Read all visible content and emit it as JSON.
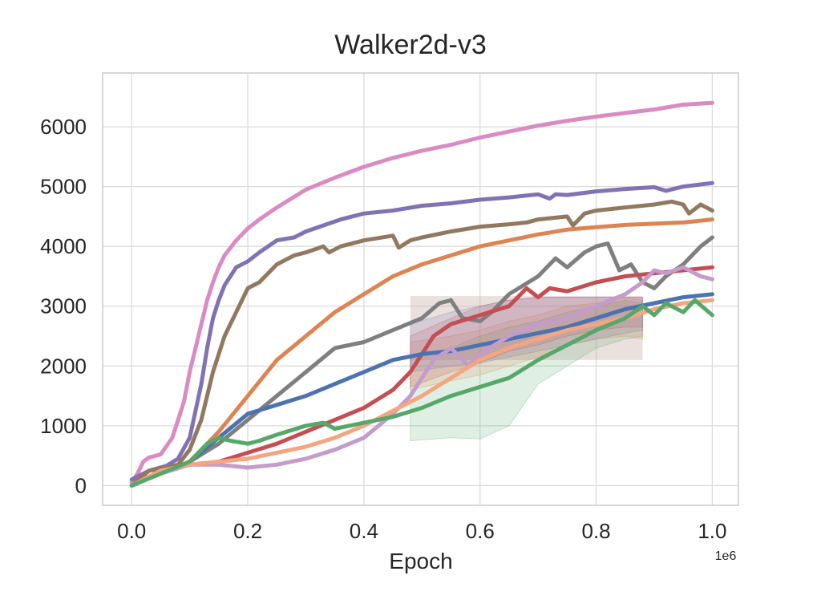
{
  "chart_data": {
    "type": "line",
    "title": "Walker2d-v3",
    "xlabel": "Epoch",
    "ylabel": "",
    "x_offset_label": "1e6",
    "xlim": [
      -0.05,
      1.045
    ],
    "ylim": [
      -330,
      6900
    ],
    "x_ticks": [
      0.0,
      0.2,
      0.4,
      0.6,
      0.8,
      1.0
    ],
    "x_tick_labels": [
      "0.0",
      "0.2",
      "0.4",
      "0.6",
      "0.8",
      "1.0"
    ],
    "y_ticks": [
      0,
      1000,
      2000,
      3000,
      4000,
      5000,
      6000
    ],
    "y_tick_labels": [
      "0",
      "1000",
      "2000",
      "3000",
      "4000",
      "5000",
      "6000"
    ],
    "grid": true,
    "style": {
      "background": "#ffffff",
      "grid_color": "#dcdcdc",
      "spine_color": "#cccccc",
      "text_color": "#262626"
    },
    "inset_box": {
      "x": [
        0.48,
        0.88
      ],
      "y": [
        2100,
        3170
      ],
      "color": "#c4a5a0"
    },
    "bands": [
      {
        "color": "#55a868",
        "x": [
          0.48,
          0.55,
          0.6,
          0.65,
          0.7,
          0.75,
          0.8,
          0.85,
          0.88
        ],
        "lower": [
          750,
          800,
          780,
          1000,
          1700,
          2000,
          2300,
          2450,
          2500
        ],
        "upper": [
          2150,
          2300,
          2500,
          2650,
          2750,
          2900,
          3000,
          3100,
          3050
        ]
      },
      {
        "color": "#dd8452",
        "x": [
          0.48,
          0.55,
          0.6,
          0.65,
          0.7,
          0.75,
          0.8,
          0.85,
          0.88
        ],
        "lower": [
          1600,
          1750,
          1850,
          2000,
          2150,
          2350,
          2450,
          2500,
          2450
        ],
        "upper": [
          2400,
          2500,
          2600,
          2750,
          2850,
          3000,
          3050,
          3150,
          3100
        ]
      },
      {
        "color": "#c44e52",
        "x": [
          0.48,
          0.55,
          0.6,
          0.65,
          0.7,
          0.75,
          0.8,
          0.85,
          0.88
        ],
        "lower": [
          1650,
          1900,
          2050,
          2250,
          2350,
          2500,
          2600,
          2650,
          2650
        ],
        "upper": [
          2500,
          2800,
          3000,
          3100,
          3150,
          3150,
          3150,
          3150,
          3150
        ]
      },
      {
        "color": "#8172b3",
        "x": [
          0.48,
          0.55,
          0.6,
          0.65,
          0.7,
          0.75,
          0.8,
          0.85,
          0.88
        ],
        "lower": [
          1900,
          2000,
          2050,
          2150,
          2250,
          2350,
          2450,
          2550,
          2600
        ],
        "upper": [
          2700,
          2900,
          3000,
          3100,
          3150,
          3150,
          3150,
          3150,
          3150
        ]
      }
    ],
    "series": [
      {
        "color": "#da8bc3",
        "x": [
          0.0,
          0.01,
          0.02,
          0.03,
          0.05,
          0.07,
          0.09,
          0.1,
          0.11,
          0.12,
          0.13,
          0.14,
          0.15,
          0.16,
          0.18,
          0.2,
          0.22,
          0.25,
          0.3,
          0.35,
          0.4,
          0.45,
          0.5,
          0.55,
          0.6,
          0.65,
          0.7,
          0.75,
          0.8,
          0.85,
          0.9,
          0.95,
          1.0
        ],
        "y": [
          50,
          200,
          400,
          470,
          520,
          800,
          1400,
          1900,
          2300,
          2700,
          3100,
          3400,
          3650,
          3850,
          4100,
          4300,
          4450,
          4650,
          4950,
          5150,
          5330,
          5480,
          5600,
          5700,
          5820,
          5920,
          6020,
          6100,
          6170,
          6230,
          6290,
          6370,
          6400
        ]
      },
      {
        "color": "#8172b3",
        "x": [
          0.0,
          0.03,
          0.06,
          0.08,
          0.1,
          0.12,
          0.13,
          0.14,
          0.15,
          0.16,
          0.18,
          0.2,
          0.22,
          0.25,
          0.28,
          0.3,
          0.33,
          0.36,
          0.4,
          0.45,
          0.5,
          0.55,
          0.6,
          0.65,
          0.68,
          0.7,
          0.72,
          0.73,
          0.75,
          0.8,
          0.85,
          0.9,
          0.92,
          0.95,
          1.0
        ],
        "y": [
          100,
          250,
          330,
          450,
          800,
          1700,
          2300,
          2800,
          3100,
          3350,
          3650,
          3750,
          3900,
          4100,
          4150,
          4250,
          4350,
          4450,
          4550,
          4600,
          4680,
          4720,
          4780,
          4820,
          4850,
          4870,
          4800,
          4870,
          4860,
          4920,
          4960,
          4990,
          4930,
          5000,
          5060
        ]
      },
      {
        "color": "#937860",
        "x": [
          0.0,
          0.03,
          0.06,
          0.08,
          0.1,
          0.12,
          0.14,
          0.16,
          0.18,
          0.2,
          0.22,
          0.25,
          0.28,
          0.3,
          0.33,
          0.34,
          0.36,
          0.4,
          0.45,
          0.46,
          0.48,
          0.5,
          0.55,
          0.6,
          0.65,
          0.68,
          0.7,
          0.75,
          0.76,
          0.78,
          0.8,
          0.85,
          0.9,
          0.93,
          0.95,
          0.96,
          0.98,
          1.0
        ],
        "y": [
          0,
          250,
          300,
          350,
          600,
          1100,
          1900,
          2500,
          2900,
          3300,
          3400,
          3700,
          3850,
          3900,
          4000,
          3900,
          4000,
          4100,
          4180,
          3980,
          4100,
          4150,
          4250,
          4330,
          4370,
          4400,
          4450,
          4500,
          4350,
          4550,
          4600,
          4650,
          4700,
          4750,
          4700,
          4550,
          4700,
          4600
        ]
      },
      {
        "color": "#dd8452",
        "x": [
          0.0,
          0.05,
          0.1,
          0.15,
          0.2,
          0.25,
          0.3,
          0.35,
          0.4,
          0.45,
          0.5,
          0.55,
          0.6,
          0.65,
          0.7,
          0.75,
          0.8,
          0.85,
          0.9,
          0.95,
          1.0
        ],
        "y": [
          0,
          200,
          400,
          900,
          1500,
          2100,
          2500,
          2900,
          3200,
          3500,
          3700,
          3850,
          4000,
          4100,
          4200,
          4280,
          4320,
          4360,
          4380,
          4400,
          4450
        ]
      },
      {
        "color": "#7f7f7f",
        "x": [
          0.0,
          0.05,
          0.1,
          0.15,
          0.2,
          0.25,
          0.3,
          0.35,
          0.4,
          0.45,
          0.5,
          0.53,
          0.55,
          0.57,
          0.6,
          0.62,
          0.65,
          0.7,
          0.73,
          0.75,
          0.78,
          0.8,
          0.82,
          0.84,
          0.86,
          0.88,
          0.9,
          0.92,
          0.95,
          0.98,
          1.0
        ],
        "y": [
          0,
          200,
          400,
          700,
          1100,
          1500,
          1900,
          2300,
          2400,
          2600,
          2800,
          3050,
          3100,
          2800,
          2750,
          2900,
          3200,
          3500,
          3800,
          3650,
          3900,
          4000,
          4050,
          3600,
          3700,
          3400,
          3300,
          3500,
          3700,
          4000,
          4150
        ]
      },
      {
        "color": "#c44e52",
        "x": [
          0.0,
          0.05,
          0.1,
          0.15,
          0.2,
          0.25,
          0.3,
          0.35,
          0.4,
          0.45,
          0.48,
          0.5,
          0.52,
          0.55,
          0.6,
          0.65,
          0.68,
          0.7,
          0.72,
          0.75,
          0.8,
          0.85,
          0.9,
          0.95,
          1.0
        ],
        "y": [
          0,
          250,
          350,
          400,
          550,
          700,
          900,
          1100,
          1300,
          1600,
          1900,
          2200,
          2500,
          2700,
          2850,
          3000,
          3300,
          3150,
          3300,
          3250,
          3400,
          3500,
          3550,
          3600,
          3650
        ]
      },
      {
        "color": "#4c72b0",
        "x": [
          0.0,
          0.05,
          0.1,
          0.15,
          0.2,
          0.25,
          0.3,
          0.35,
          0.4,
          0.45,
          0.5,
          0.55,
          0.6,
          0.65,
          0.7,
          0.75,
          0.8,
          0.85,
          0.9,
          0.95,
          1.0
        ],
        "y": [
          0,
          200,
          400,
          800,
          1200,
          1350,
          1500,
          1700,
          1900,
          2100,
          2200,
          2250,
          2350,
          2450,
          2550,
          2650,
          2800,
          2950,
          3050,
          3150,
          3200
        ]
      },
      {
        "color": "#c49bcc",
        "x": [
          0.0,
          0.05,
          0.1,
          0.15,
          0.2,
          0.25,
          0.3,
          0.35,
          0.4,
          0.45,
          0.48,
          0.5,
          0.52,
          0.55,
          0.58,
          0.6,
          0.65,
          0.7,
          0.75,
          0.8,
          0.85,
          0.88,
          0.9,
          0.92,
          0.95,
          0.98,
          1.0
        ],
        "y": [
          0,
          200,
          350,
          350,
          300,
          350,
          450,
          600,
          800,
          1200,
          1500,
          1800,
          2100,
          2300,
          2000,
          2200,
          2500,
          2700,
          2800,
          3000,
          3200,
          3400,
          3600,
          3550,
          3650,
          3500,
          3450
        ]
      },
      {
        "color": "#f4a582",
        "x": [
          0.0,
          0.05,
          0.1,
          0.15,
          0.2,
          0.25,
          0.3,
          0.35,
          0.4,
          0.45,
          0.5,
          0.55,
          0.6,
          0.65,
          0.7,
          0.75,
          0.8,
          0.85,
          0.9,
          0.95,
          1.0
        ],
        "y": [
          0,
          250,
          350,
          400,
          450,
          550,
          650,
          800,
          1000,
          1250,
          1500,
          1800,
          2100,
          2300,
          2450,
          2600,
          2700,
          2800,
          2950,
          3050,
          3100
        ]
      },
      {
        "color": "#55a868",
        "x": [
          0.0,
          0.05,
          0.1,
          0.13,
          0.15,
          0.17,
          0.2,
          0.22,
          0.25,
          0.3,
          0.33,
          0.35,
          0.4,
          0.45,
          0.5,
          0.55,
          0.6,
          0.65,
          0.7,
          0.75,
          0.8,
          0.85,
          0.88,
          0.9,
          0.92,
          0.95,
          0.97,
          1.0
        ],
        "y": [
          0,
          200,
          400,
          700,
          800,
          750,
          700,
          750,
          850,
          1000,
          1050,
          950,
          1050,
          1150,
          1300,
          1500,
          1650,
          1800,
          2100,
          2350,
          2600,
          2800,
          3000,
          2850,
          3050,
          2900,
          3100,
          2850
        ]
      }
    ]
  }
}
